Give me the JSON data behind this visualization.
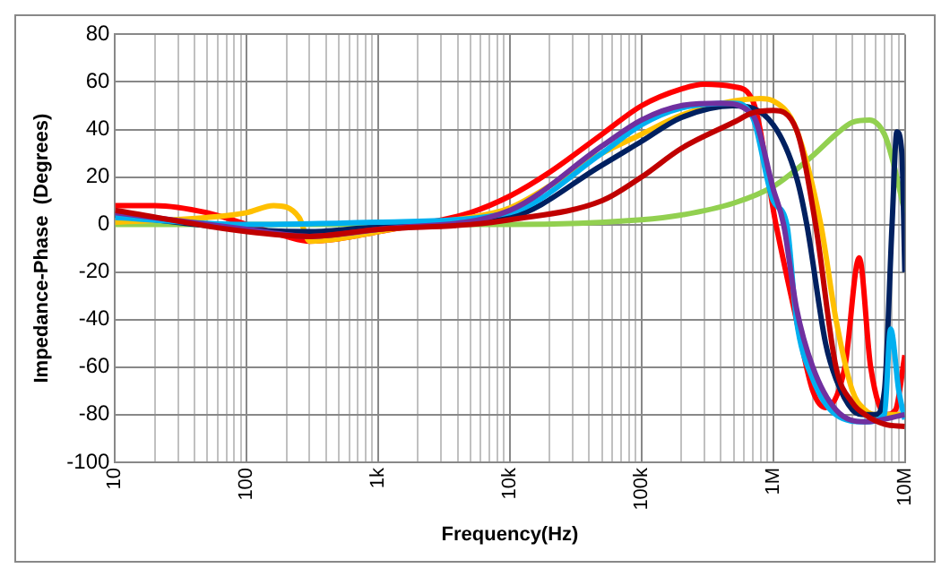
{
  "chart_data": {
    "type": "line",
    "xlabel": "Frequency(Hz)",
    "ylabel": "Impedance-Phase  (Degrees)",
    "log": "x",
    "grid": true,
    "legend": false,
    "marker": "none",
    "line_style": "solid",
    "xlim": [
      10,
      10000000
    ],
    "ylim": [
      -100,
      80
    ],
    "xticks": [
      {
        "value": 10,
        "label": "10"
      },
      {
        "value": 20,
        "label": null
      },
      {
        "value": 30,
        "label": null
      },
      {
        "value": 40,
        "label": null
      },
      {
        "value": 50,
        "label": null
      },
      {
        "value": 60,
        "label": null
      },
      {
        "value": 70,
        "label": null
      },
      {
        "value": 80,
        "label": null
      },
      {
        "value": 90,
        "label": null
      },
      {
        "value": 100,
        "label": "100"
      },
      {
        "value": 200,
        "label": null
      },
      {
        "value": 300,
        "label": null
      },
      {
        "value": 400,
        "label": null
      },
      {
        "value": 500,
        "label": null
      },
      {
        "value": 600,
        "label": null
      },
      {
        "value": 700,
        "label": null
      },
      {
        "value": 800,
        "label": null
      },
      {
        "value": 900,
        "label": null
      },
      {
        "value": 1000,
        "label": "1k"
      },
      {
        "value": 2000,
        "label": null
      },
      {
        "value": 3000,
        "label": null
      },
      {
        "value": 4000,
        "label": null
      },
      {
        "value": 5000,
        "label": null
      },
      {
        "value": 6000,
        "label": null
      },
      {
        "value": 7000,
        "label": null
      },
      {
        "value": 8000,
        "label": null
      },
      {
        "value": 9000,
        "label": null
      },
      {
        "value": 10000,
        "label": "10k"
      },
      {
        "value": 20000,
        "label": null
      },
      {
        "value": 30000,
        "label": null
      },
      {
        "value": 40000,
        "label": null
      },
      {
        "value": 50000,
        "label": null
      },
      {
        "value": 60000,
        "label": null
      },
      {
        "value": 70000,
        "label": null
      },
      {
        "value": 80000,
        "label": null
      },
      {
        "value": 90000,
        "label": null
      },
      {
        "value": 100000,
        "label": "100k"
      },
      {
        "value": 200000,
        "label": null
      },
      {
        "value": 300000,
        "label": null
      },
      {
        "value": 400000,
        "label": null
      },
      {
        "value": 500000,
        "label": null
      },
      {
        "value": 600000,
        "label": null
      },
      {
        "value": 700000,
        "label": null
      },
      {
        "value": 800000,
        "label": null
      },
      {
        "value": 900000,
        "label": null
      },
      {
        "value": 1000000,
        "label": "1M"
      },
      {
        "value": 2000000,
        "label": null
      },
      {
        "value": 3000000,
        "label": null
      },
      {
        "value": 4000000,
        "label": null
      },
      {
        "value": 5000000,
        "label": null
      },
      {
        "value": 6000000,
        "label": null
      },
      {
        "value": 7000000,
        "label": null
      },
      {
        "value": 8000000,
        "label": null
      },
      {
        "value": 9000000,
        "label": null
      },
      {
        "value": 10000000,
        "label": "10M"
      }
    ],
    "yticks": [
      -100,
      -80,
      -60,
      -40,
      -20,
      0,
      20,
      40,
      60,
      80
    ],
    "series": [
      {
        "color": "#c00000",
        "x": [
          10,
          100,
          300,
          1000,
          5000,
          10000,
          50000,
          100000,
          200000,
          500000,
          700000,
          1000000,
          1500000,
          2100000,
          3000000,
          4000000,
          5000000,
          7000000,
          10000000
        ],
        "values": [
          6,
          -3,
          -5,
          -2,
          0,
          2,
          10,
          20,
          32,
          43,
          47,
          48,
          40,
          0,
          -60,
          -75,
          -80,
          -84,
          -85
        ]
      },
      {
        "color": "#7030a0",
        "x": [
          10,
          100,
          300,
          1000,
          10000,
          50000,
          100000,
          200000,
          400000,
          700000,
          1000000,
          1200000,
          1500000,
          2000000,
          3000000,
          5000000,
          10000000
        ],
        "values": [
          5,
          -2,
          -5,
          -2,
          6,
          33,
          44,
          50,
          51,
          46,
          15,
          0,
          -35,
          -60,
          -78,
          -83,
          -80
        ]
      },
      {
        "color": "#00b0f0",
        "x": [
          10,
          100,
          1000,
          10000,
          50000,
          100000,
          200000,
          500000,
          700000,
          1000000,
          1270000,
          1500000,
          2000000,
          3000000,
          5000000,
          7000000,
          7800000,
          9000000,
          10000000
        ],
        "values": [
          3,
          0,
          1,
          5,
          30,
          42,
          49,
          51,
          45,
          10,
          0,
          -40,
          -65,
          -80,
          -83,
          -80,
          -44,
          -70,
          -82
        ]
      },
      {
        "color": "#002060",
        "x": [
          10,
          100,
          300,
          1000,
          10000,
          50000,
          100000,
          200000,
          500000,
          1000000,
          1500000,
          1800000,
          2500000,
          3000000,
          4000000,
          5000000,
          6000000,
          7000000,
          8000000,
          8700000,
          9500000,
          10000000
        ],
        "values": [
          4,
          -2,
          -3,
          -1,
          3,
          25,
          35,
          45,
          50,
          42,
          20,
          0,
          -50,
          -65,
          -78,
          -80,
          -80,
          -70,
          0,
          39,
          30,
          -20
        ]
      },
      {
        "color": "#ffc000",
        "x": [
          10,
          50,
          100,
          160,
          250,
          300,
          500,
          1000,
          2000,
          5000,
          10000,
          50000,
          100000,
          200000,
          500000,
          800000,
          1000000,
          1500000,
          2300000,
          3000000,
          4000000,
          5000000,
          6000000,
          8000000,
          10000000
        ],
        "values": [
          1,
          3,
          5,
          8,
          3,
          -7,
          -6,
          -3,
          0,
          3,
          7,
          30,
          38,
          46,
          52,
          53,
          52,
          40,
          0,
          -40,
          -70,
          -78,
          -80,
          -80,
          -80
        ]
      },
      {
        "color": "#ff0000",
        "x": [
          10,
          20,
          50,
          100,
          200,
          300,
          500,
          1000,
          2000,
          5000,
          10000,
          20000,
          50000,
          100000,
          200000,
          300000,
          500000,
          700000,
          1050000,
          1500000,
          2000000,
          2500000,
          3500000,
          4500000,
          5500000,
          7200000,
          8500000,
          10000000
        ],
        "values": [
          8,
          8,
          5,
          0,
          -5,
          -7,
          -6,
          -3,
          0,
          5,
          12,
          22,
          38,
          50,
          57,
          59,
          58,
          52,
          0,
          -40,
          -70,
          -77,
          -60,
          -14,
          -60,
          -80,
          -78,
          -55
        ]
      },
      {
        "color": "#92d050",
        "x": [
          10,
          1000,
          10000,
          100000,
          200000,
          500000,
          1000000,
          2000000,
          3000000,
          4000000,
          5400000,
          7000000,
          8000000,
          10000000
        ],
        "values": [
          0,
          0,
          0,
          2,
          4,
          9,
          16,
          29,
          38,
          43,
          44,
          38,
          28,
          5
        ]
      }
    ]
  }
}
